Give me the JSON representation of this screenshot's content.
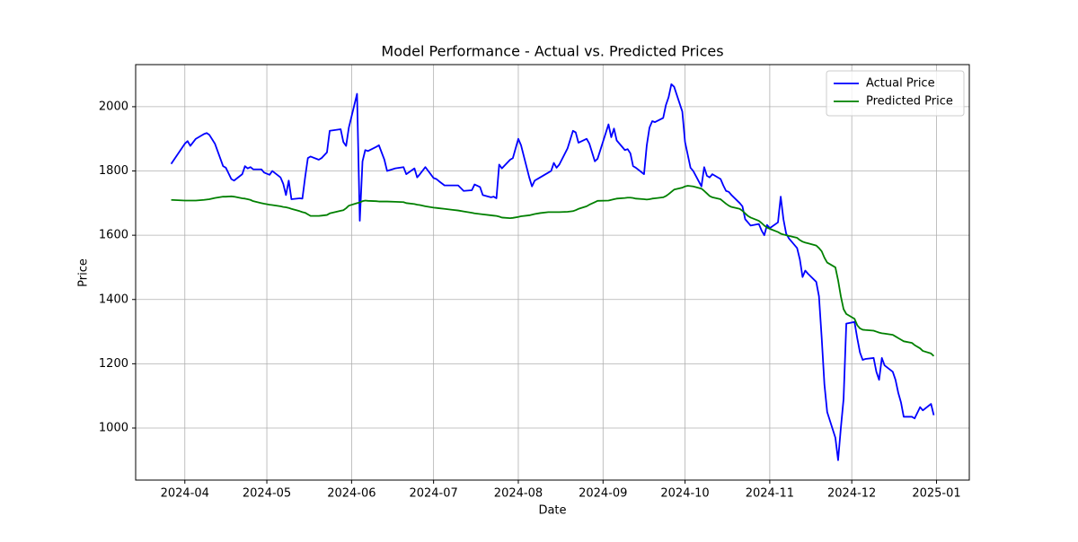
{
  "chart_data": {
    "type": "line",
    "title": "Model Performance - Actual vs. Predicted Prices",
    "xlabel": "Date",
    "ylabel": "Price",
    "x": [
      "2024-03-27",
      "2024-04-01",
      "2024-04-02",
      "2024-04-03",
      "2024-04-05",
      "2024-04-08",
      "2024-04-09",
      "2024-04-10",
      "2024-04-12",
      "2024-04-15",
      "2024-04-16",
      "2024-04-18",
      "2024-04-19",
      "2024-04-22",
      "2024-04-23",
      "2024-04-24",
      "2024-04-25",
      "2024-04-26",
      "2024-04-29",
      "2024-04-30",
      "2024-05-02",
      "2024-05-03",
      "2024-05-06",
      "2024-05-07",
      "2024-05-08",
      "2024-05-09",
      "2024-05-10",
      "2024-05-13",
      "2024-05-14",
      "2024-05-15",
      "2024-05-16",
      "2024-05-17",
      "2024-05-20",
      "2024-05-21",
      "2024-05-23",
      "2024-05-24",
      "2024-05-28",
      "2024-05-29",
      "2024-05-30",
      "2024-05-31",
      "2024-06-03",
      "2024-06-04",
      "2024-06-05",
      "2024-06-06",
      "2024-06-07",
      "2024-06-10",
      "2024-06-11",
      "2024-06-13",
      "2024-06-14",
      "2024-06-17",
      "2024-06-20",
      "2024-06-21",
      "2024-06-24",
      "2024-06-25",
      "2024-06-26",
      "2024-06-28",
      "2024-07-01",
      "2024-07-02",
      "2024-07-03",
      "2024-07-05",
      "2024-07-08",
      "2024-07-10",
      "2024-07-12",
      "2024-07-15",
      "2024-07-16",
      "2024-07-18",
      "2024-07-19",
      "2024-07-22",
      "2024-07-23",
      "2024-07-24",
      "2024-07-25",
      "2024-07-26",
      "2024-07-29",
      "2024-07-30",
      "2024-08-01",
      "2024-08-02",
      "2024-08-05",
      "2024-08-06",
      "2024-08-07",
      "2024-08-09",
      "2024-08-12",
      "2024-08-13",
      "2024-08-14",
      "2024-08-15",
      "2024-08-16",
      "2024-08-19",
      "2024-08-21",
      "2024-08-22",
      "2024-08-23",
      "2024-08-26",
      "2024-08-27",
      "2024-08-29",
      "2024-08-30",
      "2024-09-03",
      "2024-09-04",
      "2024-09-05",
      "2024-09-06",
      "2024-09-09",
      "2024-09-10",
      "2024-09-11",
      "2024-09-12",
      "2024-09-13",
      "2024-09-16",
      "2024-09-17",
      "2024-09-18",
      "2024-09-19",
      "2024-09-20",
      "2024-09-23",
      "2024-09-24",
      "2024-09-25",
      "2024-09-26",
      "2024-09-27",
      "2024-09-30",
      "2024-10-01",
      "2024-10-02",
      "2024-10-03",
      "2024-10-04",
      "2024-10-07",
      "2024-10-08",
      "2024-10-09",
      "2024-10-10",
      "2024-10-11",
      "2024-10-14",
      "2024-10-15",
      "2024-10-16",
      "2024-10-17",
      "2024-10-18",
      "2024-10-21",
      "2024-10-22",
      "2024-10-23",
      "2024-10-24",
      "2024-10-25",
      "2024-10-28",
      "2024-10-29",
      "2024-10-30",
      "2024-10-31",
      "2024-11-01",
      "2024-11-04",
      "2024-11-05",
      "2024-11-06",
      "2024-11-07",
      "2024-11-08",
      "2024-11-11",
      "2024-11-12",
      "2024-11-13",
      "2024-11-14",
      "2024-11-15",
      "2024-11-18",
      "2024-11-19",
      "2024-11-20",
      "2024-11-21",
      "2024-11-22",
      "2024-11-25",
      "2024-11-26",
      "2024-11-27",
      "2024-11-28",
      "2024-11-29",
      "2024-12-02",
      "2024-12-03",
      "2024-12-04",
      "2024-12-05",
      "2024-12-06",
      "2024-12-09",
      "2024-12-10",
      "2024-12-11",
      "2024-12-12",
      "2024-12-13",
      "2024-12-16",
      "2024-12-17",
      "2024-12-18",
      "2024-12-19",
      "2024-12-20",
      "2024-12-23",
      "2024-12-24",
      "2024-12-26",
      "2024-12-27",
      "2024-12-30",
      "2024-12-31"
    ],
    "series": [
      {
        "name": "Actual Price",
        "color": "#0000ff",
        "values": [
          1822,
          1885,
          1893,
          1878,
          1900,
          1915,
          1918,
          1912,
          1885,
          1815,
          1810,
          1775,
          1770,
          1790,
          1815,
          1808,
          1812,
          1805,
          1805,
          1795,
          1788,
          1800,
          1780,
          1760,
          1725,
          1770,
          1712,
          1715,
          1714,
          1780,
          1840,
          1845,
          1835,
          1840,
          1858,
          1925,
          1930,
          1890,
          1878,
          1935,
          2040,
          1645,
          1830,
          1865,
          1862,
          1875,
          1880,
          1835,
          1800,
          1808,
          1812,
          1790,
          1808,
          1780,
          1790,
          1812,
          1778,
          1775,
          1768,
          1755,
          1755,
          1755,
          1738,
          1740,
          1758,
          1750,
          1725,
          1718,
          1720,
          1715,
          1820,
          1808,
          1835,
          1840,
          1900,
          1880,
          1780,
          1752,
          1770,
          1780,
          1795,
          1800,
          1825,
          1810,
          1820,
          1870,
          1925,
          1920,
          1888,
          1900,
          1885,
          1830,
          1838,
          1945,
          1905,
          1932,
          1895,
          1865,
          1868,
          1855,
          1815,
          1810,
          1790,
          1880,
          1935,
          1955,
          1952,
          1965,
          2005,
          2030,
          2070,
          2062,
          1985,
          1890,
          1850,
          1810,
          1800,
          1752,
          1812,
          1785,
          1780,
          1790,
          1775,
          1755,
          1738,
          1735,
          1725,
          1700,
          1690,
          1650,
          1640,
          1630,
          1635,
          1615,
          1600,
          1632,
          1622,
          1640,
          1720,
          1650,
          1605,
          1590,
          1560,
          1525,
          1470,
          1490,
          1480,
          1455,
          1410,
          1280,
          1135,
          1050,
          970,
          900,
          1000,
          1090,
          1325,
          1330,
          1280,
          1235,
          1212,
          1215,
          1218,
          1175,
          1150,
          1218,
          1195,
          1175,
          1150,
          1110,
          1080,
          1035,
          1035,
          1030,
          1065,
          1055,
          1075,
          1040
        ]
      },
      {
        "name": "Predicted Price",
        "color": "#008000",
        "values": [
          1710,
          1708,
          1708,
          1708,
          1708,
          1710,
          1711,
          1712,
          1716,
          1720,
          1720,
          1721,
          1720,
          1715,
          1714,
          1712,
          1710,
          1706,
          1700,
          1698,
          1695,
          1694,
          1690,
          1688,
          1687,
          1685,
          1682,
          1675,
          1672,
          1670,
          1665,
          1660,
          1660,
          1661,
          1663,
          1668,
          1676,
          1678,
          1684,
          1692,
          1700,
          1702,
          1706,
          1708,
          1707,
          1706,
          1705,
          1705,
          1705,
          1704,
          1703,
          1700,
          1697,
          1695,
          1694,
          1690,
          1686,
          1685,
          1684,
          1682,
          1679,
          1677,
          1674,
          1670,
          1668,
          1666,
          1665,
          1662,
          1661,
          1660,
          1658,
          1655,
          1653,
          1654,
          1657,
          1659,
          1662,
          1664,
          1666,
          1669,
          1672,
          1672,
          1672,
          1672,
          1672,
          1673,
          1675,
          1678,
          1682,
          1690,
          1695,
          1703,
          1707,
          1708,
          1710,
          1712,
          1714,
          1716,
          1717,
          1717,
          1716,
          1714,
          1712,
          1711,
          1712,
          1714,
          1715,
          1718,
          1722,
          1728,
          1735,
          1742,
          1748,
          1752,
          1754,
          1753,
          1752,
          1745,
          1738,
          1730,
          1722,
          1718,
          1712,
          1705,
          1698,
          1692,
          1688,
          1682,
          1676,
          1668,
          1660,
          1655,
          1645,
          1638,
          1630,
          1624,
          1620,
          1610,
          1605,
          1602,
          1600,
          1598,
          1592,
          1585,
          1580,
          1577,
          1575,
          1568,
          1560,
          1550,
          1530,
          1515,
          1500,
          1460,
          1410,
          1370,
          1355,
          1340,
          1320,
          1310,
          1306,
          1305,
          1303,
          1300,
          1297,
          1295,
          1294,
          1290,
          1285,
          1280,
          1275,
          1270,
          1265,
          1258,
          1248,
          1240,
          1232,
          1224
        ]
      }
    ],
    "xlim": [
      "2024-03-14",
      "2025-01-13"
    ],
    "xticks": [
      {
        "value": "2024-04-01",
        "label": "2024-04"
      },
      {
        "value": "2024-05-01",
        "label": "2024-05"
      },
      {
        "value": "2024-06-01",
        "label": "2024-06"
      },
      {
        "value": "2024-07-01",
        "label": "2024-07"
      },
      {
        "value": "2024-08-01",
        "label": "2024-08"
      },
      {
        "value": "2024-09-01",
        "label": "2024-09"
      },
      {
        "value": "2024-10-01",
        "label": "2024-10"
      },
      {
        "value": "2024-11-01",
        "label": "2024-11"
      },
      {
        "value": "2024-12-01",
        "label": "2024-12"
      },
      {
        "value": "2025-01-01",
        "label": "2025-01"
      }
    ],
    "ylim": [
      838,
      2131
    ],
    "yticks": [
      1000,
      1200,
      1400,
      1600,
      1800,
      2000
    ],
    "grid": true,
    "legend": "upper right"
  }
}
